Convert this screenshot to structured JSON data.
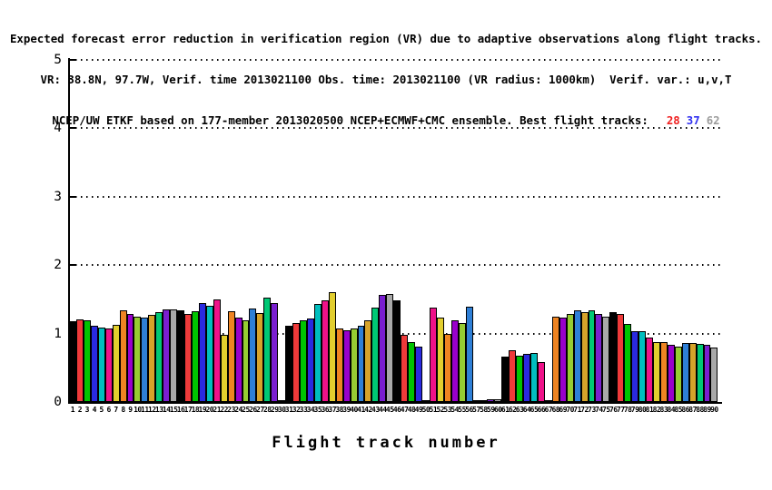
{
  "title": {
    "line1": "Expected forecast error reduction in verification region (VR) due to adaptive observations along flight tracks.",
    "line2": "VR: 38.8N, 97.7W, Verif. time 2013021100 Obs. time: 2013021100 (VR radius: 1000km)  Verif. var.: u,v,T",
    "line3_main": "NCEP/UW ETKF based on 177-member 2013020500 NCEP+ECMWF+CMC ensemble. Best flight tracks:",
    "best_tracks": [
      {
        "label": "28",
        "color": "#f02020"
      },
      {
        "label": "37",
        "color": "#3030f0"
      },
      {
        "label": "62",
        "color": "#9c9c9c"
      }
    ]
  },
  "y_axis": {
    "ticks": [
      "0",
      "1",
      "2",
      "3",
      "4",
      "5"
    ]
  },
  "x_axis": {
    "title": "Flight track number"
  },
  "chart_data": {
    "type": "bar",
    "title": "Expected forecast error reduction in verification region (VR) due to adaptive observations along flight tracks",
    "xlabel": "Flight track number",
    "ylabel": "",
    "ylim": [
      0,
      5
    ],
    "grid": "horizontal dotted lines at integers 1-5",
    "legend": "none",
    "best_flight_tracks": [
      28,
      37,
      62
    ],
    "bar_colors_cycle": [
      "#000000",
      "#ee3a3a",
      "#00c400",
      "#2a2ae0",
      "#00bebe",
      "#ee1289",
      "#e2ce2e",
      "#ee8422",
      "#9900cc",
      "#96cc32",
      "#2e7fd6",
      "#d6a32a",
      "#00c875",
      "#7a1fd0",
      "#a8a8a8"
    ],
    "categories": [
      "1",
      "2",
      "3",
      "4",
      "5",
      "6",
      "7",
      "8",
      "9",
      "10",
      "11",
      "12",
      "13",
      "14",
      "15",
      "16",
      "17",
      "18",
      "19",
      "20",
      "21",
      "22",
      "23",
      "24",
      "25",
      "26",
      "27",
      "28",
      "29",
      "30",
      "31",
      "32",
      "33",
      "34",
      "35",
      "36",
      "37",
      "38",
      "39",
      "40",
      "41",
      "42",
      "43",
      "44",
      "45",
      "46",
      "47",
      "48",
      "49",
      "50",
      "51",
      "52",
      "53",
      "54",
      "55",
      "56",
      "57",
      "58",
      "59",
      "60",
      "61",
      "62",
      "63",
      "64",
      "65",
      "66",
      "67",
      "68",
      "69",
      "70",
      "71",
      "72",
      "73",
      "74",
      "75",
      "76",
      "77",
      "78",
      "79",
      "80",
      "81",
      "82",
      "83",
      "84",
      "85",
      "86",
      "87",
      "88",
      "89",
      "90"
    ],
    "values": [
      1.18,
      1.21,
      1.19,
      1.12,
      1.09,
      1.07,
      1.13,
      1.34,
      1.29,
      1.25,
      1.23,
      1.27,
      1.31,
      1.35,
      1.35,
      1.34,
      1.29,
      1.32,
      1.45,
      1.4,
      1.5,
      0.98,
      1.32,
      1.24,
      1.2,
      1.37,
      1.3,
      1.52,
      1.45,
      0.01,
      1.12,
      1.16,
      1.2,
      1.22,
      1.43,
      1.48,
      1.6,
      1.08,
      1.05,
      1.08,
      1.12,
      1.2,
      1.38,
      1.56,
      1.58,
      1.49,
      0.98,
      0.88,
      0.81,
      0.01,
      1.38,
      1.23,
      1.0,
      1.2,
      1.16,
      1.39,
      0.03,
      0.03,
      0.04,
      0.04,
      0.66,
      0.75,
      0.67,
      0.7,
      0.71,
      0.58,
      0.01,
      1.25,
      1.24,
      1.29,
      1.34,
      1.31,
      1.34,
      1.29,
      1.25,
      1.31,
      1.28,
      1.14,
      1.04,
      1.04,
      0.94,
      0.88,
      0.88,
      0.84,
      0.81,
      0.86,
      0.86,
      0.85,
      0.83,
      0.8
    ]
  }
}
